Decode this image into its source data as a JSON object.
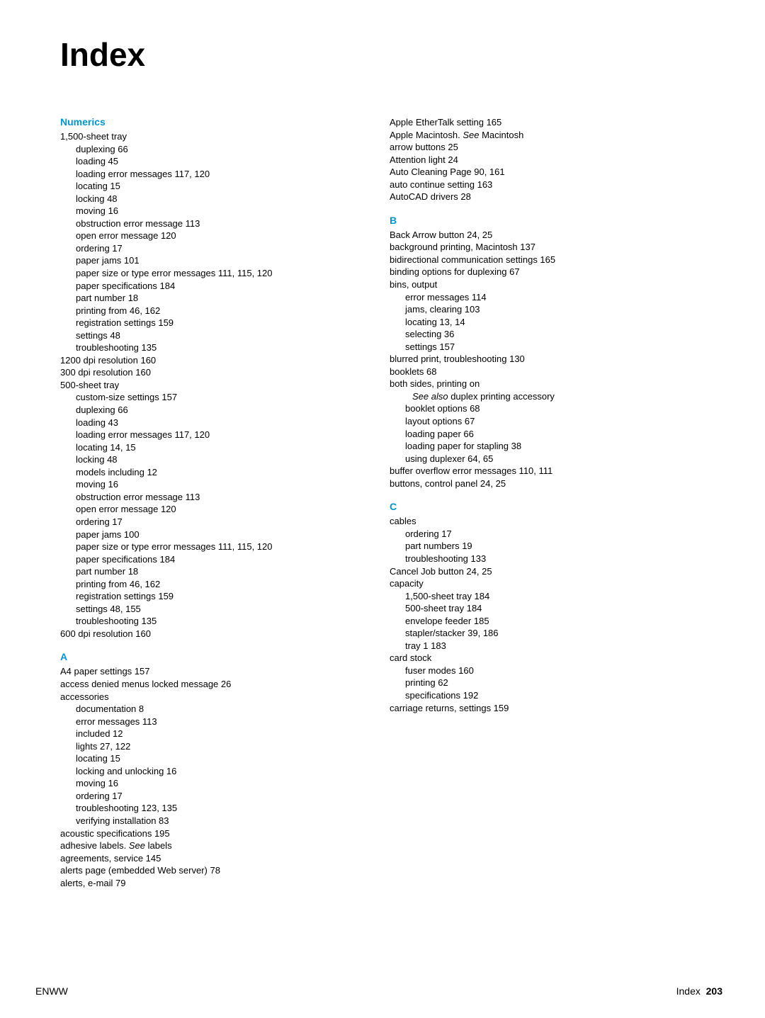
{
  "title": "Index",
  "sections": [
    {
      "heading": "Numerics",
      "column": 0,
      "entries": [
        {
          "text": "1,500-sheet tray",
          "level": 0
        },
        {
          "text": "duplexing  66",
          "level": 1
        },
        {
          "text": "loading  45",
          "level": 1
        },
        {
          "text": "loading error messages  117,  120",
          "level": 1
        },
        {
          "text": "locating  15",
          "level": 1
        },
        {
          "text": "locking  48",
          "level": 1
        },
        {
          "text": "moving  16",
          "level": 1
        },
        {
          "text": "obstruction error message  113",
          "level": 1
        },
        {
          "text": "open error message  120",
          "level": 1
        },
        {
          "text": "ordering  17",
          "level": 1
        },
        {
          "text": "paper jams  101",
          "level": 1
        },
        {
          "text": "paper size or type error messages  111,  115,  120",
          "level": 1
        },
        {
          "text": "paper specifications  184",
          "level": 1
        },
        {
          "text": "part number  18",
          "level": 1
        },
        {
          "text": "printing from  46,  162",
          "level": 1
        },
        {
          "text": "registration settings  159",
          "level": 1
        },
        {
          "text": "settings  48",
          "level": 1
        },
        {
          "text": "troubleshooting  135",
          "level": 1
        },
        {
          "text": "1200 dpi resolution  160",
          "level": 0
        },
        {
          "text": "300 dpi resolution  160",
          "level": 0
        },
        {
          "text": "500-sheet tray",
          "level": 0
        },
        {
          "text": "custom-size settings  157",
          "level": 1
        },
        {
          "text": "duplexing  66",
          "level": 1
        },
        {
          "text": "loading  43",
          "level": 1
        },
        {
          "text": "loading error messages  117,  120",
          "level": 1
        },
        {
          "text": "locating  14,  15",
          "level": 1
        },
        {
          "text": "locking  48",
          "level": 1
        },
        {
          "text": "models including  12",
          "level": 1
        },
        {
          "text": "moving  16",
          "level": 1
        },
        {
          "text": "obstruction error message  113",
          "level": 1
        },
        {
          "text": "open error message  120",
          "level": 1
        },
        {
          "text": "ordering  17",
          "level": 1
        },
        {
          "text": "paper jams  100",
          "level": 1
        },
        {
          "text": "paper size or type error messages  111,  115,  120",
          "level": 1
        },
        {
          "text": "paper specifications  184",
          "level": 1
        },
        {
          "text": "part number  18",
          "level": 1
        },
        {
          "text": "printing from  46,  162",
          "level": 1
        },
        {
          "text": "registration settings  159",
          "level": 1
        },
        {
          "text": "settings  48,  155",
          "level": 1
        },
        {
          "text": "troubleshooting  135",
          "level": 1
        },
        {
          "text": "600 dpi resolution  160",
          "level": 0
        }
      ]
    },
    {
      "heading": "A",
      "column": 0,
      "entries": [
        {
          "text": "A4 paper settings  157",
          "level": 0
        },
        {
          "text": "access denied menus locked message  26",
          "level": 0
        },
        {
          "text": "accessories",
          "level": 0
        },
        {
          "text": "documentation  8",
          "level": 1
        },
        {
          "text": "error messages  113",
          "level": 1
        },
        {
          "text": "included  12",
          "level": 1
        },
        {
          "text": "lights  27,  122",
          "level": 1
        },
        {
          "text": "locating  15",
          "level": 1
        },
        {
          "text": "locking and unlocking  16",
          "level": 1
        },
        {
          "text": "moving  16",
          "level": 1
        },
        {
          "text": "ordering  17",
          "level": 1
        },
        {
          "text": "troubleshooting  123,  135",
          "level": 1
        },
        {
          "text": "verifying installation  83",
          "level": 1
        },
        {
          "text": "acoustic specifications  195",
          "level": 0
        },
        {
          "html": "adhesive labels. <span class=\"italic\">See</span> labels",
          "level": 0
        },
        {
          "text": "agreements, service  145",
          "level": 0
        },
        {
          "text": "alerts page (embedded Web server)  78",
          "level": 0
        },
        {
          "text": "alerts, e-mail  79",
          "level": 0
        }
      ]
    },
    {
      "heading": null,
      "column": 1,
      "entries": [
        {
          "text": "Apple EtherTalk setting  165",
          "level": 0
        },
        {
          "html": "Apple Macintosh. <span class=\"italic\">See</span>  Macintosh",
          "level": 0
        },
        {
          "text": "arrow buttons  25",
          "level": 0
        },
        {
          "text": "Attention light  24",
          "level": 0
        },
        {
          "text": "Auto Cleaning Page  90,  161",
          "level": 0
        },
        {
          "text": "auto continue setting  163",
          "level": 0
        },
        {
          "text": "AutoCAD drivers  28",
          "level": 0
        }
      ]
    },
    {
      "heading": "B",
      "column": 1,
      "entries": [
        {
          "text": "Back Arrow button  24,  25",
          "level": 0
        },
        {
          "text": "background printing, Macintosh  137",
          "level": 0
        },
        {
          "text": "bidirectional communication settings  165",
          "level": 0
        },
        {
          "text": "binding options for duplexing  67",
          "level": 0
        },
        {
          "text": "bins, output",
          "level": 0
        },
        {
          "text": "error messages  114",
          "level": 1
        },
        {
          "text": "jams, clearing  103",
          "level": 1
        },
        {
          "text": "locating  13,  14",
          "level": 1
        },
        {
          "text": "selecting  36",
          "level": 1
        },
        {
          "text": "settings  157",
          "level": 1
        },
        {
          "text": "blurred print, troubleshooting  130",
          "level": 0
        },
        {
          "text": "booklets  68",
          "level": 0
        },
        {
          "text": "both sides, printing on",
          "level": 0
        },
        {
          "html": "<span class=\"italic\">See also</span> duplex printing accessory",
          "level": 2
        },
        {
          "text": "booklet options  68",
          "level": 1
        },
        {
          "text": "layout options  67",
          "level": 1
        },
        {
          "text": "loading paper  66",
          "level": 1
        },
        {
          "text": "loading paper for stapling  38",
          "level": 1
        },
        {
          "text": "using duplexer  64,  65",
          "level": 1
        },
        {
          "text": "buffer overflow error messages  110,  111",
          "level": 0
        },
        {
          "text": "buttons, control panel  24,  25",
          "level": 0
        }
      ]
    },
    {
      "heading": "C",
      "column": 1,
      "entries": [
        {
          "text": "cables",
          "level": 0
        },
        {
          "text": "ordering  17",
          "level": 1
        },
        {
          "text": "part numbers  19",
          "level": 1
        },
        {
          "text": "troubleshooting  133",
          "level": 1
        },
        {
          "text": "Cancel Job button  24,  25",
          "level": 0
        },
        {
          "text": "capacity",
          "level": 0
        },
        {
          "text": "1,500-sheet tray  184",
          "level": 1
        },
        {
          "text": "500-sheet tray  184",
          "level": 1
        },
        {
          "text": "envelope feeder  185",
          "level": 1
        },
        {
          "text": "stapler/stacker  39,  186",
          "level": 1
        },
        {
          "text": "tray 1  183",
          "level": 1
        },
        {
          "text": "card stock",
          "level": 0
        },
        {
          "text": "fuser modes  160",
          "level": 1
        },
        {
          "text": "printing  62",
          "level": 1
        },
        {
          "text": "specifications  192",
          "level": 1
        },
        {
          "text": "carriage returns, settings  159",
          "level": 0
        }
      ]
    }
  ],
  "footer": {
    "left": "ENWW",
    "right_label": "Index",
    "page_number": "203"
  },
  "colors": {
    "heading": "#0096d6",
    "text": "#000000",
    "background": "#ffffff"
  },
  "typography": {
    "title_fontsize": 46,
    "heading_fontsize": 14,
    "entry_fontsize": 13,
    "footer_fontsize": 14
  }
}
